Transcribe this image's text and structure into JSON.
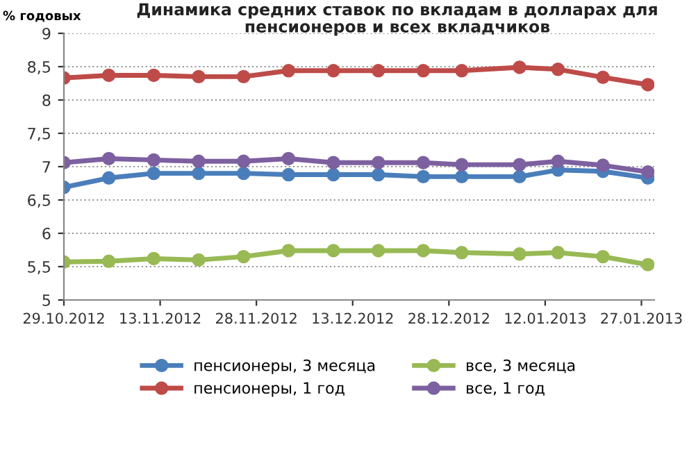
{
  "chart_data": {
    "type": "line",
    "title": "Динамика средних ставок по вкладам в долларах для\nпенсионеров и всех вкладчиков",
    "ylabel": "% годовых",
    "x": [
      "2012-10-29",
      "2012-11-05",
      "2012-11-12",
      "2012-11-19",
      "2012-11-26",
      "2012-12-03",
      "2012-12-10",
      "2012-12-17",
      "2012-12-24",
      "2012-12-30",
      "2013-01-08",
      "2013-01-14",
      "2013-01-21",
      "2013-01-28"
    ],
    "series": [
      {
        "name": "пенсионеры, 3 месяца",
        "color": "#4a7ebb",
        "values": [
          6.69,
          6.83,
          6.9,
          6.9,
          6.9,
          6.88,
          6.88,
          6.88,
          6.85,
          6.85,
          6.85,
          6.95,
          6.93,
          6.83
        ]
      },
      {
        "name": "пенсионеры, 1 год",
        "color": "#be4b48",
        "values": [
          8.33,
          8.37,
          8.37,
          8.35,
          8.35,
          8.44,
          8.44,
          8.44,
          8.44,
          8.44,
          8.49,
          8.46,
          8.34,
          8.23
        ]
      },
      {
        "name": "все, 3 месяца",
        "color": "#98b954",
        "values": [
          5.57,
          5.58,
          5.62,
          5.6,
          5.65,
          5.74,
          5.74,
          5.74,
          5.74,
          5.71,
          5.69,
          5.71,
          5.65,
          5.53
        ]
      },
      {
        "name": "все, 1 год",
        "color": "#7d60a0",
        "values": [
          7.06,
          7.12,
          7.1,
          7.08,
          7.08,
          7.12,
          7.06,
          7.06,
          7.06,
          7.03,
          7.03,
          7.08,
          7.02,
          6.92
        ]
      }
    ],
    "xlim": [
      "2012-10-29",
      "2013-01-29"
    ],
    "xticks": [
      {
        "value": "2012-10-29",
        "label": "29.10.2012"
      },
      {
        "value": "2012-11-13",
        "label": "13.11.2012"
      },
      {
        "value": "2012-11-28",
        "label": "28.11.2012"
      },
      {
        "value": "2012-12-13",
        "label": "13.12.2012"
      },
      {
        "value": "2012-12-28",
        "label": "28.12.2012"
      },
      {
        "value": "2013-01-12",
        "label": "12.01.2013"
      },
      {
        "value": "2013-01-27",
        "label": "27.01.2013"
      }
    ],
    "ylim": [
      5,
      9
    ],
    "yticks": [
      5,
      {
        "value": 5.5,
        "label": "5,5"
      },
      6,
      {
        "value": 6.5,
        "label": "6,5"
      },
      7,
      {
        "value": 7.5,
        "label": "7,5"
      },
      8,
      {
        "value": 8.5,
        "label": "8,5"
      },
      9
    ],
    "grid": "y",
    "legend": "bottom",
    "marker": "circle",
    "line_style": "solid"
  }
}
